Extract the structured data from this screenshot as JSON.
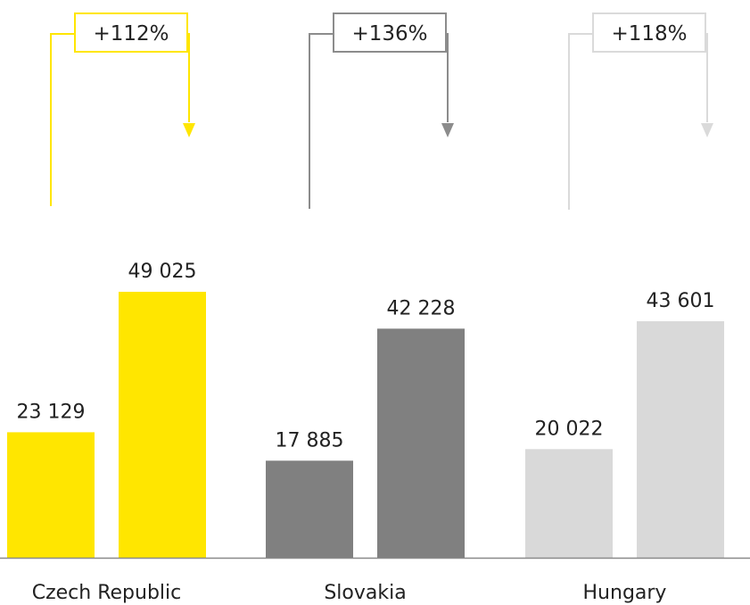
{
  "chart_data": {
    "type": "bar",
    "categories": [
      "Czech Republic",
      "Slovakia",
      "Hungary"
    ],
    "colors": [
      "#FFE600",
      "#808080",
      "#D9D9D9"
    ],
    "connector_colors": [
      "#FFE600",
      "#8C8C8C",
      "#DADADA"
    ],
    "pairs": [
      {
        "values": [
          23129,
          49025
        ],
        "labels": [
          "23 129",
          "49 025"
        ],
        "change": "+112%"
      },
      {
        "values": [
          17885,
          42228
        ],
        "labels": [
          "17 885",
          "42 228"
        ],
        "change": "+136%"
      },
      {
        "values": [
          20022,
          43601
        ],
        "labels": [
          "20 022",
          "43 601"
        ],
        "change": "+118%"
      }
    ],
    "ylim": [
      0,
      49025
    ],
    "grid": false,
    "legend": "none"
  }
}
